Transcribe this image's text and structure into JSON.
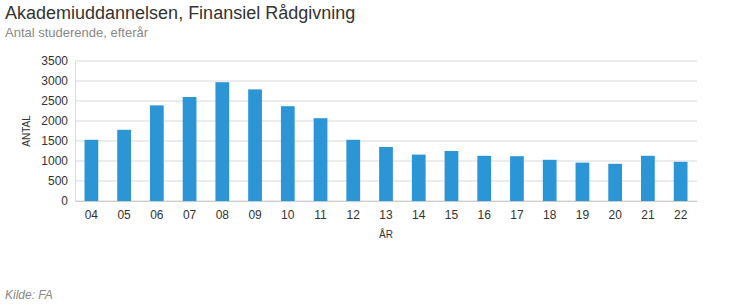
{
  "chart_data": {
    "type": "bar",
    "title": "Akademiuddannelsen, Finansiel Rådgivning",
    "subtitle": "Antal studerende, efterår",
    "x_label": "ÅR",
    "y_label": "ANTAL",
    "source": "Kilde: FA",
    "categories": [
      "04",
      "05",
      "06",
      "07",
      "08",
      "09",
      "10",
      "11",
      "12",
      "13",
      "14",
      "15",
      "16",
      "17",
      "18",
      "19",
      "20",
      "21",
      "22"
    ],
    "values": [
      1530,
      1780,
      2390,
      2600,
      2970,
      2790,
      2370,
      2070,
      1530,
      1350,
      1160,
      1250,
      1130,
      1120,
      1030,
      960,
      930,
      1130,
      980
    ],
    "color": "#2b95d6",
    "ylim": [
      0,
      3500
    ],
    "yticks": [
      0,
      500,
      1000,
      1500,
      2000,
      2500,
      3000,
      3500
    ],
    "grid": true
  }
}
